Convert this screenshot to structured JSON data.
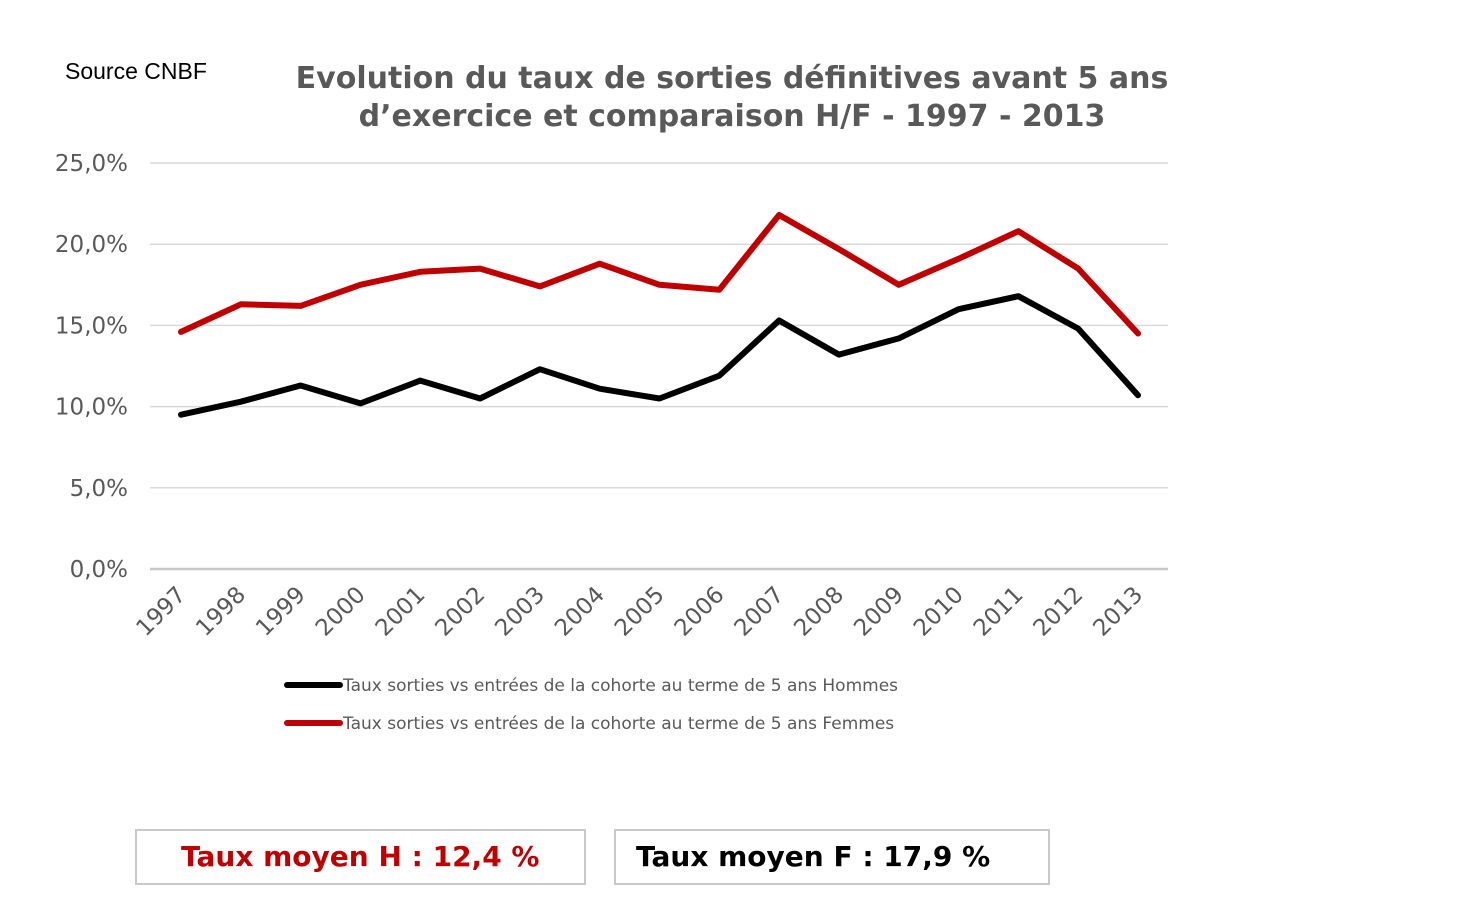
{
  "source": "Source CNBF",
  "chart_data": {
    "type": "line",
    "title": "Evolution du taux de sorties définitives avant 5 ans d’exercice et comparaison H/F - 1997 - 2013",
    "title_lines": [
      "Evolution du taux de sorties définitives avant 5 ans",
      "d’exercice et comparaison H/F - 1997 - 2013"
    ],
    "categories": [
      "1997",
      "1998",
      "1999",
      "2000",
      "2001",
      "2002",
      "2003",
      "2004",
      "2005",
      "2006",
      "2007",
      "2008",
      "2009",
      "2010",
      "2011",
      "2012",
      "2013"
    ],
    "yticks": [
      "0,0%",
      "5,0%",
      "10,0%",
      "15,0%",
      "20,0%",
      "25,0%"
    ],
    "ylim": [
      0,
      25
    ],
    "xlabel": "",
    "ylabel": "",
    "grid": true,
    "legend_position": "bottom",
    "series": [
      {
        "name": "Taux sorties vs entrées de la cohorte au terme de 5 ans Hommes",
        "color": "#000000",
        "values": [
          9.5,
          10.3,
          11.3,
          10.2,
          11.6,
          10.5,
          12.3,
          11.1,
          10.5,
          11.9,
          15.3,
          13.2,
          14.2,
          16.0,
          16.8,
          14.8,
          10.7
        ]
      },
      {
        "name": "Taux sorties vs entrées de la cohorte au terme de 5 ans Femmes",
        "color": "#c00000",
        "values": [
          14.6,
          16.3,
          16.2,
          17.5,
          18.3,
          18.5,
          17.4,
          18.8,
          17.5,
          17.2,
          21.8,
          19.7,
          17.5,
          19.1,
          20.8,
          18.5,
          14.5
        ]
      }
    ]
  },
  "summary": {
    "hommes": {
      "label": "Taux moyen H : 12,4 %",
      "color": "#c00000"
    },
    "femmes": {
      "label": "Taux moyen F : 17,9 %",
      "color": "#000000"
    }
  }
}
